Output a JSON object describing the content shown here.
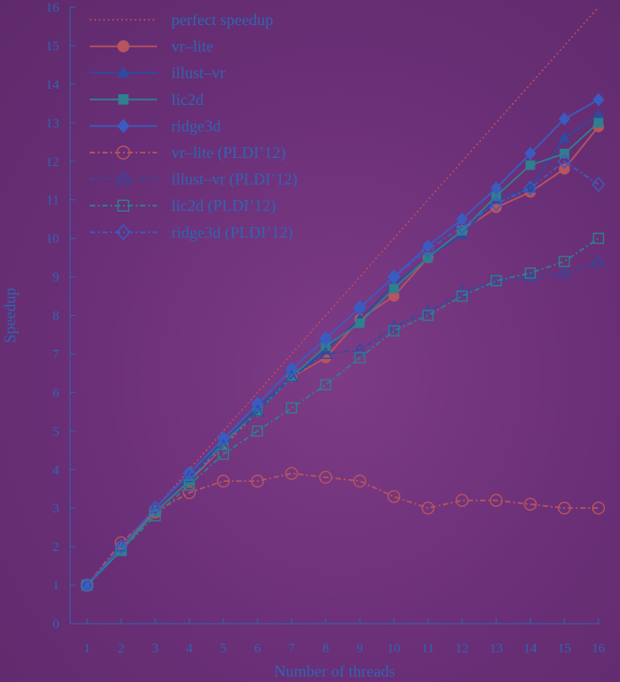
{
  "chart_data": {
    "type": "line",
    "xlabel": "Number of threads",
    "ylabel": "Speedup",
    "xlim": [
      1,
      16
    ],
    "ylim": [
      0,
      16
    ],
    "x": [
      1,
      2,
      3,
      4,
      5,
      6,
      7,
      8,
      9,
      10,
      11,
      12,
      13,
      14,
      15,
      16
    ],
    "x_ticks": [
      "1",
      "2",
      "3",
      "4",
      "5",
      "6",
      "7",
      "8",
      "9",
      "10",
      "11",
      "12",
      "13",
      "14",
      "15",
      "16"
    ],
    "y_ticks": [
      "0",
      "1",
      "2",
      "3",
      "4",
      "5",
      "6",
      "7",
      "8",
      "9",
      "10",
      "11",
      "12",
      "13",
      "14",
      "15",
      "16"
    ],
    "legend_position": "top-left",
    "grid": false,
    "series": [
      {
        "name": "perfect speedup",
        "style": "dotted",
        "marker": "none",
        "color": "#c04a5a",
        "values": [
          1,
          2,
          3,
          4,
          5,
          6,
          7,
          8,
          9,
          10,
          11,
          12,
          13,
          14,
          15,
          16
        ]
      },
      {
        "name": "vr–lite",
        "style": "solid",
        "marker": "circle",
        "filled": true,
        "color": "#b8545e",
        "values": [
          1.0,
          2.0,
          2.9,
          3.7,
          4.6,
          5.5,
          6.4,
          6.9,
          7.9,
          8.5,
          9.5,
          10.2,
          10.8,
          11.2,
          11.8,
          12.9
        ]
      },
      {
        "name": "illust–vr",
        "style": "solid",
        "marker": "triangle",
        "filled": true,
        "color": "#2f4aa0",
        "values": [
          1.0,
          2.0,
          3.0,
          3.9,
          4.7,
          5.6,
          6.4,
          7.1,
          7.9,
          8.8,
          9.5,
          10.1,
          11.0,
          11.3,
          12.6,
          13.2
        ]
      },
      {
        "name": "lic2d",
        "style": "solid",
        "marker": "square",
        "filled": true,
        "color": "#2f7f8f",
        "values": [
          1.0,
          1.9,
          2.9,
          3.7,
          4.7,
          5.5,
          6.4,
          7.2,
          7.8,
          8.7,
          9.5,
          10.2,
          11.1,
          11.9,
          12.2,
          13.0
        ]
      },
      {
        "name": "ridge3d",
        "style": "solid",
        "marker": "diamond",
        "filled": true,
        "color": "#3a5cc0",
        "values": [
          1.0,
          2.0,
          3.0,
          3.9,
          4.8,
          5.7,
          6.6,
          7.4,
          8.2,
          9.0,
          9.8,
          10.5,
          11.3,
          12.2,
          13.1,
          13.6
        ]
      },
      {
        "name": "vr–lite (PLDI’12)",
        "style": "dashdot",
        "marker": "circle",
        "filled": false,
        "color": "#b8545e",
        "values": [
          1.0,
          2.1,
          2.9,
          3.4,
          3.7,
          3.7,
          3.9,
          3.8,
          3.7,
          3.3,
          3.0,
          3.2,
          3.2,
          3.1,
          3.0,
          3.0
        ]
      },
      {
        "name": "illust–vr (PLDI’12)",
        "style": "dashdot",
        "marker": "triangle",
        "filled": false,
        "color": "#2f4aa0",
        "values": [
          1.0,
          2.0,
          3.0,
          3.8,
          4.6,
          5.5,
          6.4,
          7.0,
          7.1,
          7.7,
          8.1,
          8.6,
          8.9,
          9.0,
          9.1,
          9.4
        ]
      },
      {
        "name": "lic2d (PLDI’12)",
        "style": "dashdot",
        "marker": "square",
        "filled": false,
        "color": "#2f7f8f",
        "values": [
          1.0,
          1.9,
          2.8,
          3.6,
          4.4,
          5.0,
          5.6,
          6.2,
          6.9,
          7.6,
          8.0,
          8.5,
          8.9,
          9.1,
          9.4,
          10.0
        ]
      },
      {
        "name": "ridge3d (PLDI’12)",
        "style": "dashdot",
        "marker": "diamond",
        "filled": false,
        "color": "#3a5cc0",
        "values": [
          1.0,
          2.0,
          3.0,
          3.9,
          4.8,
          5.7,
          6.6,
          7.4,
          8.2,
          9.0,
          9.7,
          10.3,
          10.9,
          11.3,
          12.0,
          11.4
        ]
      }
    ]
  }
}
